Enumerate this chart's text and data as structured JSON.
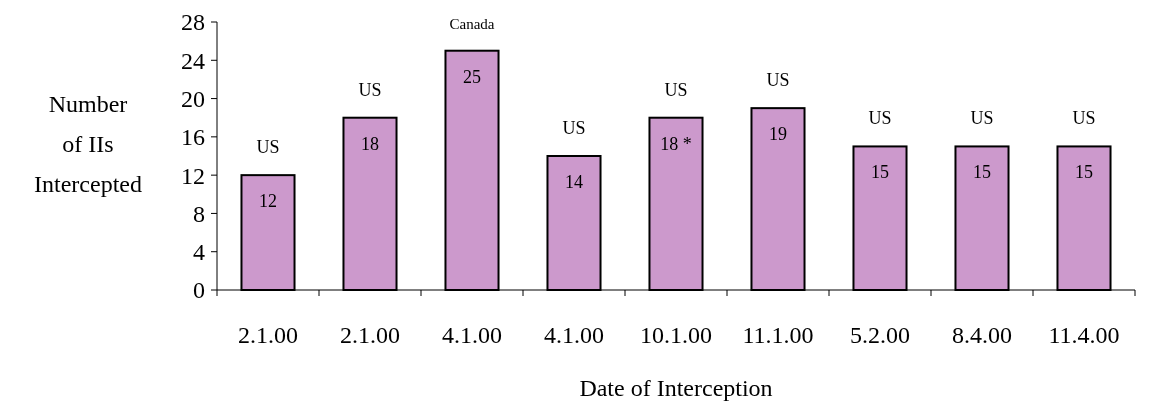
{
  "chart_data": {
    "type": "bar",
    "xlabel": "Date of Interception",
    "ylabel": "Number of IIs Intercepted",
    "categories": [
      "2.1.00",
      "2.1.00",
      "4.1.00",
      "4.1.00",
      "10.1.00",
      "11.1.00",
      "5.2.00",
      "8.4.00",
      "11.4.00"
    ],
    "values": [
      12,
      18,
      25,
      14,
      18,
      19,
      15,
      15,
      15
    ],
    "value_labels": [
      "12",
      "18",
      "25",
      "14",
      "18 *",
      "19",
      "15",
      "15",
      "15"
    ],
    "color": "#cc99cc",
    "ylim": [
      0,
      28
    ],
    "yticks": [
      0,
      4,
      8,
      12,
      16,
      20,
      24,
      28
    ],
    "annotations": [
      "US",
      "US",
      "Canada",
      "US",
      "US",
      "US",
      "US",
      "US",
      "US"
    ]
  }
}
